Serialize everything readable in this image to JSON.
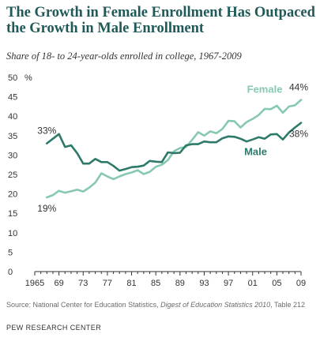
{
  "title": "The Growth in Female Enrollment Has Outpaced the Growth in Male Enrollment",
  "subtitle": "Share of 18- to 24-year-olds enrolled in college, 1967-2009",
  "source": {
    "prefix": "Source: National Center for Education Statistics, ",
    "italic": "Digest of Education Statistics 2010",
    "suffix": ", Table 212"
  },
  "organization": "PEW RESEARCH CENTER",
  "colors": {
    "female": "#86c9b0",
    "male": "#2e7a6a",
    "axis": "#333333"
  },
  "chart_data": {
    "type": "line",
    "xlim": [
      1965,
      2009
    ],
    "ylim": [
      0,
      50
    ],
    "y_ticks": [
      0,
      5,
      10,
      15,
      20,
      25,
      30,
      35,
      40,
      45,
      50
    ],
    "y_unit_label": "%",
    "x_ticks": [
      1965,
      1969,
      1973,
      1977,
      1981,
      1985,
      1989,
      1993,
      1997,
      2001,
      2005,
      2009
    ],
    "x_tick_labels": [
      "1965",
      "69",
      "73",
      "77",
      "81",
      "85",
      "89",
      "93",
      "97",
      "01",
      "05",
      "09"
    ],
    "grid": false,
    "series": [
      {
        "name": "Female",
        "color_key": "female",
        "x": [
          1967,
          1968,
          1969,
          1970,
          1971,
          1972,
          1973,
          1974,
          1975,
          1976,
          1977,
          1978,
          1979,
          1980,
          1981,
          1982,
          1983,
          1984,
          1985,
          1986,
          1987,
          1988,
          1989,
          1990,
          1991,
          1992,
          1993,
          1994,
          1995,
          1996,
          1997,
          1998,
          1999,
          2000,
          2001,
          2002,
          2003,
          2004,
          2005,
          2006,
          2007,
          2008,
          2009
        ],
        "y": [
          19.1,
          19.7,
          20.8,
          20.3,
          20.7,
          21.1,
          20.6,
          21.6,
          22.9,
          25.3,
          24.5,
          23.8,
          24.5,
          25.1,
          25.5,
          26.1,
          25.1,
          25.7,
          27.0,
          27.5,
          28.7,
          31.0,
          31.8,
          32.1,
          33.9,
          35.9,
          35.0,
          36.1,
          35.6,
          36.7,
          38.8,
          38.7,
          37.1,
          38.5,
          39.3,
          40.3,
          41.9,
          41.8,
          42.7,
          40.9,
          42.5,
          42.8,
          44.2
        ]
      },
      {
        "name": "Male",
        "color_key": "male",
        "x": [
          1967,
          1968,
          1969,
          1970,
          1971,
          1972,
          1973,
          1974,
          1975,
          1976,
          1977,
          1978,
          1979,
          1980,
          1981,
          1982,
          1983,
          1984,
          1985,
          1986,
          1987,
          1988,
          1989,
          1990,
          1991,
          1992,
          1993,
          1994,
          1995,
          1996,
          1997,
          1998,
          1999,
          2000,
          2001,
          2002,
          2003,
          2004,
          2005,
          2006,
          2007,
          2008,
          2009
        ],
        "y": [
          33.0,
          34.2,
          35.4,
          32.1,
          32.5,
          30.5,
          27.8,
          27.8,
          29.0,
          28.2,
          28.2,
          27.2,
          26.0,
          26.4,
          26.9,
          27.0,
          27.3,
          28.5,
          28.3,
          28.2,
          30.7,
          30.5,
          30.6,
          32.5,
          32.8,
          32.8,
          33.5,
          33.3,
          33.3,
          34.3,
          34.8,
          34.7,
          34.2,
          33.5,
          34.0,
          34.6,
          34.2,
          35.3,
          35.4,
          34.0,
          35.8,
          37.1,
          38.3
        ]
      }
    ],
    "annotations": [
      {
        "text": "33%",
        "x": 1967,
        "y": 33.0
      },
      {
        "text": "19%",
        "x": 1967,
        "y": 19.1
      },
      {
        "text": "44%",
        "x": 2009,
        "y": 44.2
      },
      {
        "text": "38%",
        "x": 2009,
        "y": 38.3
      }
    ]
  }
}
